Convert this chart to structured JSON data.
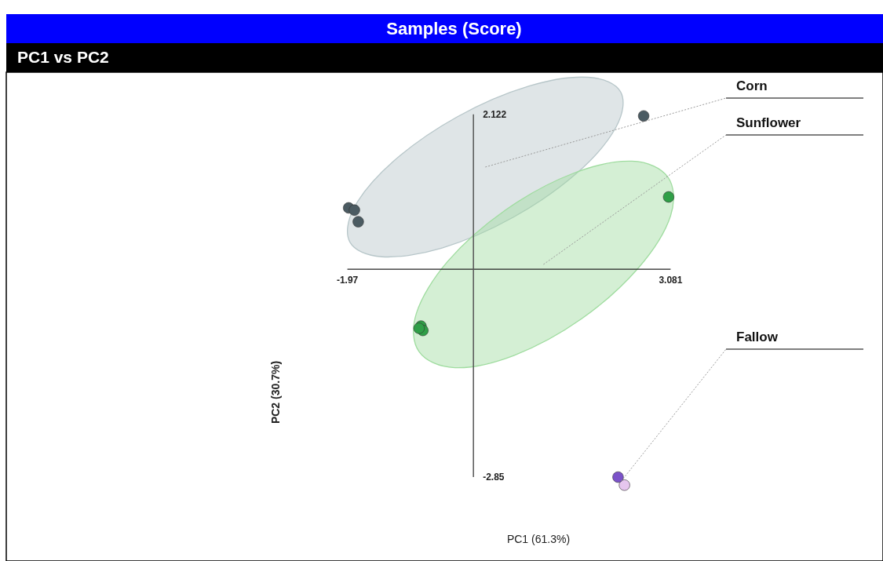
{
  "chart_data": {
    "type": "scatter",
    "title": "Samples (Score)",
    "subtitle": "PC1 vs PC2",
    "xlabel": "PC1 (61.3%)",
    "ylabel": "PC2 (30.7%)",
    "xlim": [
      -7.3,
      6.4
    ],
    "ylim": [
      -4.0,
      2.7
    ],
    "xticks": [
      -1.97,
      3.081
    ],
    "yticks": [
      -2.85,
      2.122
    ],
    "series": [
      {
        "type": "area",
        "name": "Corn",
        "color": "#b7c6c9",
        "x": [
          2.3,
          1.8,
          0.87,
          -0.25,
          -1.25,
          -1.86,
          -1.93,
          -1.43,
          -0.49,
          0.62,
          1.62,
          2.23
        ],
        "values": [
          2.43,
          2.63,
          2.51,
          2.09,
          1.48,
          0.85,
          0.37,
          0.17,
          0.29,
          0.71,
          1.32,
          1.95
        ]
      },
      {
        "type": "area",
        "name": "Sunflower",
        "color": "#9fdc9f",
        "x": [
          3.04,
          2.48,
          1.55,
          0.5,
          -0.4,
          -0.89,
          -0.85,
          -0.29,
          0.64,
          1.69,
          2.58,
          3.08
        ],
        "values": [
          1.26,
          1.48,
          1.31,
          0.81,
          0.11,
          -0.6,
          -1.13,
          -1.35,
          -1.18,
          -0.68,
          0.02,
          0.73
        ]
      },
      {
        "color": "#4b5b62",
        "x": [
          2.66,
          -1.95,
          -1.86,
          -1.8
        ],
        "values": [
          2.1,
          0.84,
          0.81,
          0.65
        ]
      },
      {
        "color": "#2f9f47",
        "x": [
          3.05,
          -0.82,
          -0.79,
          -0.85
        ],
        "values": [
          0.99,
          -0.78,
          -0.84,
          -0.81
        ]
      },
      {
        "name": "Fallow",
        "colors": [
          "#e6c6ee",
          "#7b52c9"
        ],
        "x": [
          2.36,
          2.26
        ],
        "values": [
          -2.96,
          -2.85
        ]
      }
    ],
    "ref_lines": [
      {
        "axis": "y",
        "value": 0,
        "color": "#222222"
      }
    ]
  }
}
